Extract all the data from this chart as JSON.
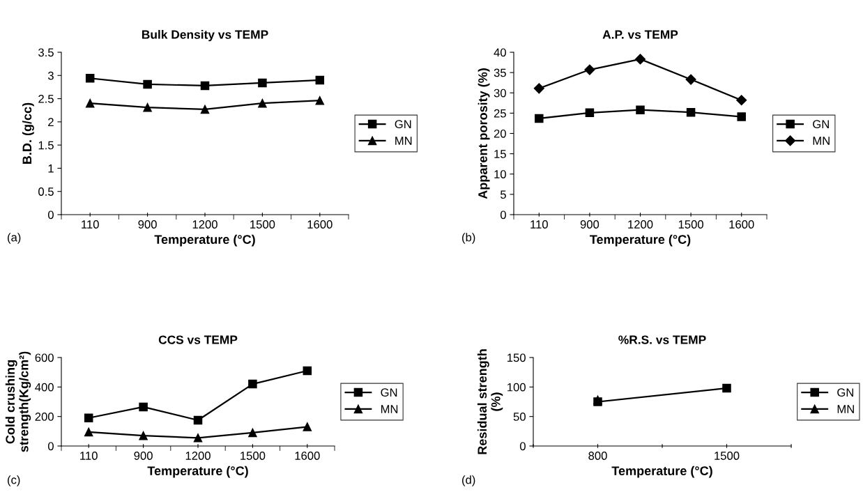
{
  "chart_data": [
    {
      "type": "line",
      "title": "Bulk Density vs TEMP",
      "xlabel": "Temperature (°C)",
      "ylabel": "B.D. (g/cc)",
      "categories": [
        "110",
        "900",
        "1200",
        "1500",
        "1600"
      ],
      "ylim": [
        0,
        3.5
      ],
      "yticks": [
        0,
        0.5,
        1,
        1.5,
        2,
        2.5,
        3,
        3.5
      ],
      "legend": "right",
      "grid": false,
      "annotations": [
        "(a)"
      ],
      "series": [
        {
          "name": "GN",
          "color": "#000000",
          "marker": "square",
          "values": [
            2.94,
            2.81,
            2.78,
            2.84,
            2.9
          ]
        },
        {
          "name": "MN",
          "color": "#000000",
          "marker": "triangle",
          "values": [
            2.4,
            2.31,
            2.27,
            2.4,
            2.46
          ]
        }
      ]
    },
    {
      "type": "line",
      "title": "A.P. vs TEMP",
      "xlabel": "Temperature (°C)",
      "ylabel": "Apparent porosity (%)",
      "categories": [
        "110",
        "900",
        "1200",
        "1500",
        "1600"
      ],
      "ylim": [
        0,
        40
      ],
      "yticks": [
        0,
        5,
        10,
        15,
        20,
        25,
        30,
        35,
        40
      ],
      "legend": "right",
      "grid": false,
      "annotations": [
        "(b)"
      ],
      "series": [
        {
          "name": "GN",
          "color": "#000000",
          "marker": "square",
          "values": [
            23.7,
            25.1,
            25.8,
            25.2,
            24.1
          ]
        },
        {
          "name": "MN",
          "color": "#000000",
          "marker": "diamond",
          "values": [
            31.1,
            35.7,
            38.3,
            33.3,
            28.2
          ]
        }
      ]
    },
    {
      "type": "line",
      "title": "CCS vs TEMP",
      "xlabel": "Temperature (°C)",
      "ylabel": "Cold crushing\nstrength(Kg/cm²)",
      "categories": [
        "110",
        "900",
        "1200",
        "1500",
        "1600"
      ],
      "ylim": [
        0,
        600
      ],
      "yticks": [
        0,
        200,
        400,
        600
      ],
      "legend": "right",
      "grid": false,
      "annotations": [
        "(c)"
      ],
      "series": [
        {
          "name": "GN",
          "color": "#000000",
          "marker": "square",
          "values": [
            190,
            265,
            175,
            420,
            510
          ]
        },
        {
          "name": "MN",
          "color": "#000000",
          "marker": "triangle",
          "values": [
            95,
            70,
            55,
            90,
            130
          ]
        }
      ]
    },
    {
      "type": "line",
      "title": "%R.S. vs TEMP",
      "xlabel": "Temperature (°C)",
      "ylabel": "Residual strength\n(%)",
      "categories": [
        null,
        "800",
        null,
        "1500",
        null
      ],
      "ylim": [
        0,
        150
      ],
      "yticks": [
        0,
        50,
        100,
        150
      ],
      "legend": "right",
      "grid": false,
      "annotations": [
        "(d)"
      ],
      "series": [
        {
          "name": "GN",
          "color": "#000000",
          "marker": "square",
          "values": [
            null,
            75,
            null,
            98,
            null
          ]
        },
        {
          "name": "MN",
          "color": "#000000",
          "marker": "triangle",
          "values": [
            null,
            78,
            null,
            null,
            null
          ]
        }
      ]
    }
  ]
}
